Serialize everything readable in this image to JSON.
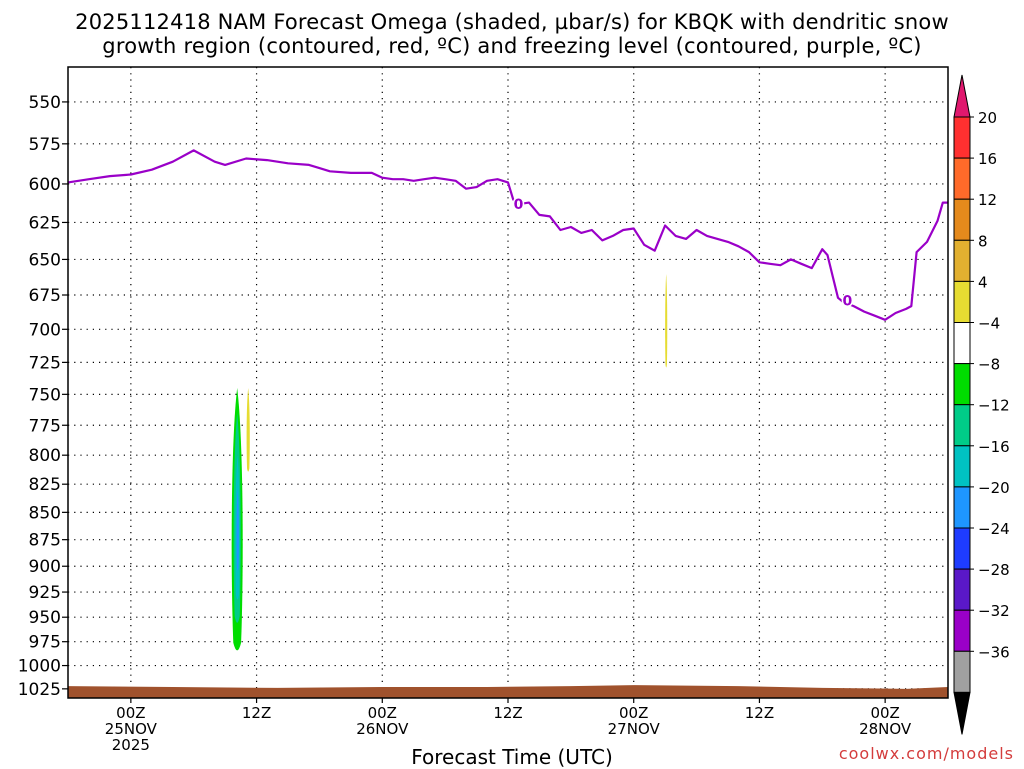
{
  "chart_data": {
    "type": "area",
    "title_lines": [
      "2025112418 NAM Forecast Omega (shaded, µbar/s) for KBQK with dendritic snow",
      "growth region (contoured, red, ºC) and freezing level (contoured, purple, ºC)"
    ],
    "xlabel": "Forecast Time (UTC)",
    "credit": "coolwx.com/models",
    "ylabel": "",
    "yaxis": {
      "scale": "log-pressure",
      "inverted": true,
      "range_hpa": [
        530,
        1035
      ],
      "tick_values": [
        550,
        575,
        600,
        625,
        650,
        675,
        700,
        725,
        750,
        775,
        800,
        825,
        850,
        875,
        900,
        925,
        950,
        975,
        1000,
        1025
      ],
      "tick_labels": [
        "550",
        "575",
        "600",
        "625",
        "650",
        "675",
        "700",
        "725",
        "750",
        "775",
        "800",
        "825",
        "850",
        "875",
        "900",
        "925",
        "950",
        "975",
        "1000",
        "1025"
      ]
    },
    "xaxis": {
      "range_hours_from_init": [
        0,
        84
      ],
      "ticks": [
        {
          "hour": 6,
          "lines": [
            "00Z",
            "25NOV",
            "2025"
          ]
        },
        {
          "hour": 18,
          "lines": [
            "12Z"
          ]
        },
        {
          "hour": 30,
          "lines": [
            "00Z",
            "26NOV"
          ]
        },
        {
          "hour": 42,
          "lines": [
            "12Z"
          ]
        },
        {
          "hour": 54,
          "lines": [
            "00Z",
            "27NOV"
          ]
        },
        {
          "hour": 66,
          "lines": [
            "12Z"
          ]
        },
        {
          "hour": 78,
          "lines": [
            "00Z",
            "28NOV"
          ]
        }
      ]
    },
    "grid": true,
    "freezing_level": {
      "name": "freezing level",
      "color": "#9a00c8",
      "contour_label": "0",
      "label_points": [
        {
          "hour": 43.0,
          "hpa": 613
        },
        {
          "hour": 74.4,
          "hpa": 679
        }
      ],
      "points": [
        [
          0,
          599
        ],
        [
          2,
          597
        ],
        [
          4,
          595
        ],
        [
          6,
          594
        ],
        [
          8,
          591
        ],
        [
          10,
          586
        ],
        [
          12,
          579
        ],
        [
          14,
          586
        ],
        [
          15,
          588
        ],
        [
          17,
          584
        ],
        [
          19,
          585
        ],
        [
          21,
          587
        ],
        [
          23,
          588
        ],
        [
          24,
          590
        ],
        [
          25,
          592
        ],
        [
          27,
          593
        ],
        [
          29,
          593
        ],
        [
          30,
          596
        ],
        [
          31,
          597
        ],
        [
          32,
          597
        ],
        [
          33,
          598
        ],
        [
          34,
          597
        ],
        [
          35,
          596
        ],
        [
          36,
          597
        ],
        [
          37,
          598
        ],
        [
          38,
          603
        ],
        [
          39,
          602
        ],
        [
          40,
          598
        ],
        [
          41,
          597
        ],
        [
          42,
          599
        ],
        [
          42.5,
          610
        ],
        [
          43,
          613
        ],
        [
          44,
          612
        ],
        [
          45,
          620
        ],
        [
          46,
          621
        ],
        [
          47,
          630
        ],
        [
          48,
          628
        ],
        [
          49,
          632
        ],
        [
          50,
          630
        ],
        [
          51,
          637
        ],
        [
          52,
          634
        ],
        [
          53,
          630
        ],
        [
          54,
          629
        ],
        [
          55,
          640
        ],
        [
          56,
          644
        ],
        [
          57,
          627
        ],
        [
          58,
          634
        ],
        [
          59,
          636
        ],
        [
          60,
          630
        ],
        [
          61,
          634
        ],
        [
          62,
          636
        ],
        [
          63,
          638
        ],
        [
          64,
          641
        ],
        [
          65,
          645
        ],
        [
          66,
          652
        ],
        [
          67,
          653
        ],
        [
          68,
          654
        ],
        [
          69,
          650
        ],
        [
          70,
          653
        ],
        [
          71,
          656
        ],
        [
          72,
          643
        ],
        [
          72.5,
          647
        ],
        [
          73,
          662
        ],
        [
          73.5,
          677
        ],
        [
          74,
          680
        ],
        [
          75,
          683
        ],
        [
          76,
          687
        ],
        [
          77,
          690
        ],
        [
          78,
          693
        ],
        [
          79,
          688
        ],
        [
          80,
          685
        ],
        [
          80.5,
          683
        ],
        [
          81,
          645
        ],
        [
          82,
          638
        ],
        [
          83,
          624
        ],
        [
          83.5,
          612
        ],
        [
          84,
          612
        ]
      ]
    },
    "terrain": {
      "name": "surface",
      "color": "#a0522d",
      "points": [
        [
          0,
          1022
        ],
        [
          10,
          1023
        ],
        [
          20,
          1024
        ],
        [
          30,
          1023
        ],
        [
          40,
          1023
        ],
        [
          48,
          1022
        ],
        [
          54,
          1021
        ],
        [
          64,
          1022
        ],
        [
          72,
          1024
        ],
        [
          80,
          1025
        ],
        [
          84,
          1023
        ]
      ]
    },
    "omega_features": [
      {
        "value": -6,
        "color": "#00dd00",
        "center_hour": 16.15,
        "top_hpa": 745,
        "bottom_hpa": 990,
        "half_width_hours": 0.62
      },
      {
        "value": -10,
        "color": "#00cc88",
        "center_hour": 16.15,
        "top_hpa": 765,
        "bottom_hpa": 960,
        "half_width_hours": 0.4
      },
      {
        "value": -14,
        "color": "#00c2c2",
        "center_hour": 16.18,
        "top_hpa": 800,
        "bottom_hpa": 935,
        "half_width_hours": 0.25
      },
      {
        "value": -18,
        "color": "#1e96ff",
        "center_hour": 16.2,
        "top_hpa": 830,
        "bottom_hpa": 905,
        "half_width_hours": 0.13
      },
      {
        "value": 6,
        "color": "#e6dc32",
        "center_hour": 17.2,
        "top_hpa": 745,
        "bottom_hpa": 815,
        "half_width_hours": 0.18
      },
      {
        "value": 6,
        "color": "#e6dc32",
        "center_hour": 57.1,
        "top_hpa": 660,
        "bottom_hpa": 730,
        "half_width_hours": 0.12
      }
    ],
    "colorbar": {
      "labels": [
        "20",
        "16",
        "12",
        "8",
        "4",
        "−4",
        "−8",
        "−12",
        "−16",
        "−20",
        "−24",
        "−28",
        "−32",
        "−36"
      ],
      "colors": [
        "#ff3030",
        "#ff6a2a",
        "#e58a1c",
        "#e2b030",
        "#e6dc32",
        "#ffffff",
        "#00dd00",
        "#00cc88",
        "#00c2c2",
        "#1e96ff",
        "#1e3cff",
        "#5a18c8",
        "#9a00c8",
        "#a0a0a0"
      ],
      "top_arrow_color": "#e0186e",
      "bottom_arrow_color": "#000000"
    }
  }
}
